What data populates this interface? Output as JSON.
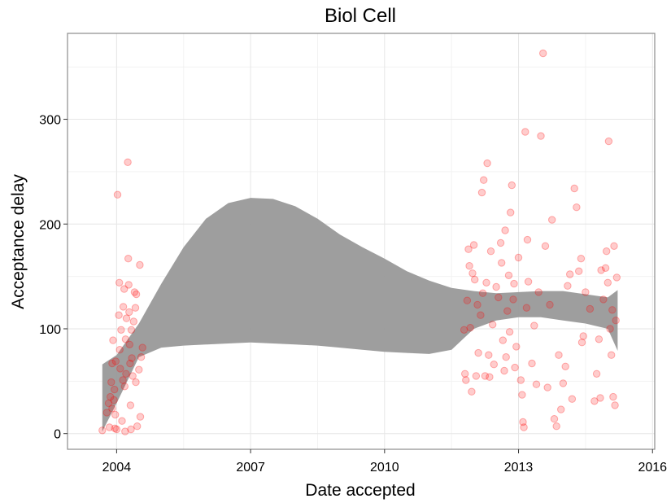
{
  "chart_data": {
    "type": "scatter",
    "title": "Biol Cell",
    "xlabel": "Date accepted",
    "ylabel": "Acceptance delay",
    "x_ticks": [
      2004,
      2007,
      2010,
      2013,
      2016
    ],
    "x_tick_labels": [
      "2004",
      "2007",
      "2010",
      "2013",
      "2016"
    ],
    "y_ticks": [
      0,
      100,
      200,
      300
    ],
    "y_tick_labels": [
      "0",
      "100",
      "200",
      "300"
    ],
    "xlim": [
      2002.9,
      2016.05
    ],
    "ylim": [
      -15,
      382
    ],
    "grid": true,
    "colors": {
      "points": "#ff0000",
      "band": "#999999",
      "panel_border": "#8c8c8c",
      "grid_major": "#e6e6e6",
      "grid_minor": "#f2f2f2"
    },
    "points": [
      {
        "x": 2003.68,
        "y": 3
      },
      {
        "x": 2003.78,
        "y": 20
      },
      {
        "x": 2003.82,
        "y": 29
      },
      {
        "x": 2003.84,
        "y": 6
      },
      {
        "x": 2003.86,
        "y": 35
      },
      {
        "x": 2003.88,
        "y": 49
      },
      {
        "x": 2003.9,
        "y": 67
      },
      {
        "x": 2003.9,
        "y": 24
      },
      {
        "x": 2003.92,
        "y": 89
      },
      {
        "x": 2003.94,
        "y": 32
      },
      {
        "x": 2003.95,
        "y": 42
      },
      {
        "x": 2003.96,
        "y": 5
      },
      {
        "x": 2003.97,
        "y": 18
      },
      {
        "x": 2003.98,
        "y": 69
      },
      {
        "x": 2004.0,
        "y": 4
      },
      {
        "x": 2004.02,
        "y": 228
      },
      {
        "x": 2004.05,
        "y": 113
      },
      {
        "x": 2004.06,
        "y": 144
      },
      {
        "x": 2004.07,
        "y": 80
      },
      {
        "x": 2004.08,
        "y": 62
      },
      {
        "x": 2004.1,
        "y": 99
      },
      {
        "x": 2004.12,
        "y": 12
      },
      {
        "x": 2004.14,
        "y": 51
      },
      {
        "x": 2004.15,
        "y": 121
      },
      {
        "x": 2004.17,
        "y": 138
      },
      {
        "x": 2004.18,
        "y": 45
      },
      {
        "x": 2004.19,
        "y": 2
      },
      {
        "x": 2004.2,
        "y": 90
      },
      {
        "x": 2004.21,
        "y": 57
      },
      {
        "x": 2004.22,
        "y": 110
      },
      {
        "x": 2004.25,
        "y": 259
      },
      {
        "x": 2004.26,
        "y": 167
      },
      {
        "x": 2004.27,
        "y": 142
      },
      {
        "x": 2004.28,
        "y": 116
      },
      {
        "x": 2004.29,
        "y": 85
      },
      {
        "x": 2004.3,
        "y": 67
      },
      {
        "x": 2004.31,
        "y": 27
      },
      {
        "x": 2004.32,
        "y": 4
      },
      {
        "x": 2004.33,
        "y": 99
      },
      {
        "x": 2004.34,
        "y": 72
      },
      {
        "x": 2004.36,
        "y": 55
      },
      {
        "x": 2004.38,
        "y": 107
      },
      {
        "x": 2004.4,
        "y": 135
      },
      {
        "x": 2004.42,
        "y": 120
      },
      {
        "x": 2004.43,
        "y": 49
      },
      {
        "x": 2004.44,
        "y": 133
      },
      {
        "x": 2004.46,
        "y": 7
      },
      {
        "x": 2004.5,
        "y": 61
      },
      {
        "x": 2004.52,
        "y": 161
      },
      {
        "x": 2004.53,
        "y": 16
      },
      {
        "x": 2004.55,
        "y": 73
      },
      {
        "x": 2004.58,
        "y": 82
      },
      {
        "x": 2011.78,
        "y": 99
      },
      {
        "x": 2011.8,
        "y": 57
      },
      {
        "x": 2011.82,
        "y": 51
      },
      {
        "x": 2011.85,
        "y": 127
      },
      {
        "x": 2011.88,
        "y": 176
      },
      {
        "x": 2011.9,
        "y": 160
      },
      {
        "x": 2011.92,
        "y": 101
      },
      {
        "x": 2011.95,
        "y": 40
      },
      {
        "x": 2011.97,
        "y": 153
      },
      {
        "x": 2012.0,
        "y": 180
      },
      {
        "x": 2012.02,
        "y": 147
      },
      {
        "x": 2012.05,
        "y": 55
      },
      {
        "x": 2012.08,
        "y": 123
      },
      {
        "x": 2012.1,
        "y": 77
      },
      {
        "x": 2012.15,
        "y": 113
      },
      {
        "x": 2012.18,
        "y": 230
      },
      {
        "x": 2012.2,
        "y": 134
      },
      {
        "x": 2012.22,
        "y": 242
      },
      {
        "x": 2012.25,
        "y": 55
      },
      {
        "x": 2012.28,
        "y": 144
      },
      {
        "x": 2012.3,
        "y": 258
      },
      {
        "x": 2012.33,
        "y": 75
      },
      {
        "x": 2012.35,
        "y": 54
      },
      {
        "x": 2012.38,
        "y": 174
      },
      {
        "x": 2012.42,
        "y": 104
      },
      {
        "x": 2012.45,
        "y": 66
      },
      {
        "x": 2012.5,
        "y": 140
      },
      {
        "x": 2012.55,
        "y": 130
      },
      {
        "x": 2012.6,
        "y": 182
      },
      {
        "x": 2012.62,
        "y": 163
      },
      {
        "x": 2012.65,
        "y": 89
      },
      {
        "x": 2012.68,
        "y": 60
      },
      {
        "x": 2012.7,
        "y": 194
      },
      {
        "x": 2012.72,
        "y": 73
      },
      {
        "x": 2012.75,
        "y": 117
      },
      {
        "x": 2012.78,
        "y": 151
      },
      {
        "x": 2012.8,
        "y": 97
      },
      {
        "x": 2012.82,
        "y": 211
      },
      {
        "x": 2012.85,
        "y": 237
      },
      {
        "x": 2012.88,
        "y": 128
      },
      {
        "x": 2012.9,
        "y": 143
      },
      {
        "x": 2012.92,
        "y": 63
      },
      {
        "x": 2012.95,
        "y": 83
      },
      {
        "x": 2013.0,
        "y": 168
      },
      {
        "x": 2013.05,
        "y": 51
      },
      {
        "x": 2013.08,
        "y": 37
      },
      {
        "x": 2013.1,
        "y": 11
      },
      {
        "x": 2013.12,
        "y": 6
      },
      {
        "x": 2013.15,
        "y": 288
      },
      {
        "x": 2013.18,
        "y": 120
      },
      {
        "x": 2013.2,
        "y": 185
      },
      {
        "x": 2013.22,
        "y": 145
      },
      {
        "x": 2013.3,
        "y": 67
      },
      {
        "x": 2013.35,
        "y": 103
      },
      {
        "x": 2013.4,
        "y": 47
      },
      {
        "x": 2013.45,
        "y": 135
      },
      {
        "x": 2013.5,
        "y": 284
      },
      {
        "x": 2013.55,
        "y": 363
      },
      {
        "x": 2013.6,
        "y": 179
      },
      {
        "x": 2013.65,
        "y": 44
      },
      {
        "x": 2013.7,
        "y": 123
      },
      {
        "x": 2013.75,
        "y": 204
      },
      {
        "x": 2013.8,
        "y": 14
      },
      {
        "x": 2013.85,
        "y": 7
      },
      {
        "x": 2013.9,
        "y": 75
      },
      {
        "x": 2013.95,
        "y": 23
      },
      {
        "x": 2014.0,
        "y": 48
      },
      {
        "x": 2014.05,
        "y": 64
      },
      {
        "x": 2014.1,
        "y": 141
      },
      {
        "x": 2014.15,
        "y": 152
      },
      {
        "x": 2014.2,
        "y": 33
      },
      {
        "x": 2014.25,
        "y": 234
      },
      {
        "x": 2014.3,
        "y": 216
      },
      {
        "x": 2014.35,
        "y": 155
      },
      {
        "x": 2014.4,
        "y": 167
      },
      {
        "x": 2014.42,
        "y": 87
      },
      {
        "x": 2014.45,
        "y": 93
      },
      {
        "x": 2014.5,
        "y": 135
      },
      {
        "x": 2014.6,
        "y": 119
      },
      {
        "x": 2014.7,
        "y": 31
      },
      {
        "x": 2014.75,
        "y": 57
      },
      {
        "x": 2014.8,
        "y": 90
      },
      {
        "x": 2014.83,
        "y": 34
      },
      {
        "x": 2014.85,
        "y": 156
      },
      {
        "x": 2014.9,
        "y": 128
      },
      {
        "x": 2014.95,
        "y": 158
      },
      {
        "x": 2014.97,
        "y": 174
      },
      {
        "x": 2015.0,
        "y": 144
      },
      {
        "x": 2015.02,
        "y": 279
      },
      {
        "x": 2015.05,
        "y": 100
      },
      {
        "x": 2015.08,
        "y": 75
      },
      {
        "x": 2015.1,
        "y": 118
      },
      {
        "x": 2015.12,
        "y": 35
      },
      {
        "x": 2015.14,
        "y": 179
      },
      {
        "x": 2015.16,
        "y": 27
      },
      {
        "x": 2015.18,
        "y": 108
      },
      {
        "x": 2015.2,
        "y": 149
      }
    ],
    "smooth_band": {
      "x": [
        2003.68,
        2004.0,
        2004.5,
        2005.0,
        2005.5,
        2006.0,
        2006.5,
        2007.0,
        2007.5,
        2008.0,
        2008.5,
        2009.0,
        2009.5,
        2010.0,
        2010.5,
        2011.0,
        2011.5,
        2012.0,
        2012.5,
        2013.0,
        2013.5,
        2014.0,
        2014.5,
        2015.0,
        2015.22
      ],
      "lower": [
        2,
        29,
        73,
        82,
        84,
        85,
        86,
        87,
        86,
        85,
        84,
        82,
        80,
        78,
        77,
        76,
        80,
        100,
        108,
        111,
        111,
        108,
        105,
        100,
        79
      ],
      "upper": [
        66,
        75,
        105,
        143,
        178,
        205,
        220,
        225,
        224,
        217,
        205,
        190,
        178,
        167,
        155,
        146,
        139,
        136,
        134,
        135,
        136,
        136,
        133,
        130,
        137
      ]
    }
  }
}
